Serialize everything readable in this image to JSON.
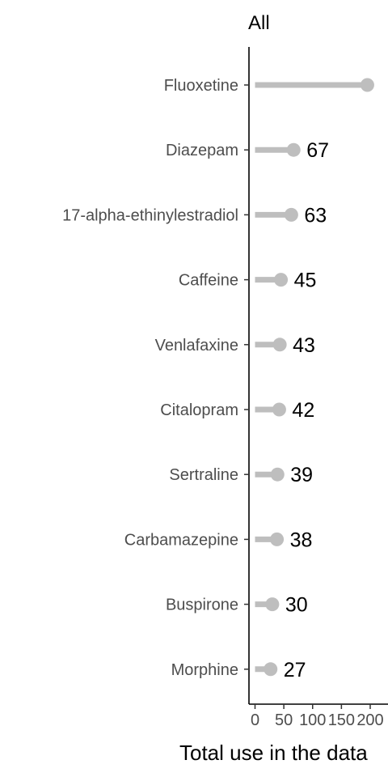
{
  "chart_data": {
    "type": "lollipop",
    "title": "All",
    "xlabel": "Total use in the data",
    "ylabel": "",
    "xlim": [
      0,
      200
    ],
    "xticks": [
      0,
      50,
      100,
      150,
      200
    ],
    "categories": [
      "Fluoxetine",
      "Diazepam",
      "17-alpha-ethinylestradiol",
      "Caffeine",
      "Venlafaxine",
      "Citalopram",
      "Sertraline",
      "Carbamazepine",
      "Buspirone",
      "Morphine"
    ],
    "values": [
      195,
      67,
      63,
      45,
      43,
      42,
      39,
      38,
      30,
      27
    ],
    "value_labels": [
      "",
      "67",
      "63",
      "45",
      "43",
      "42",
      "39",
      "38",
      "30",
      "27"
    ],
    "colors": {
      "stem": "#bebebe",
      "point": "#bebebe",
      "axis": "#000000",
      "tick_text": "#4d4d4d"
    }
  }
}
